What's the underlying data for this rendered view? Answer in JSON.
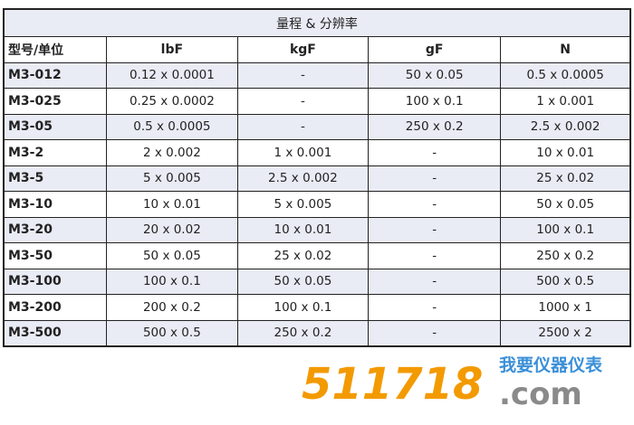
{
  "table": {
    "title": "量程 & 分辨率",
    "headers": [
      "型号/单位",
      "lbF",
      "kgF",
      "gF",
      "N"
    ],
    "rows": [
      [
        "M3-012",
        "0.12 x 0.0001",
        "-",
        "50 x 0.05",
        "0.5 x 0.0005"
      ],
      [
        "M3-025",
        "0.25 x 0.0002",
        "-",
        "100 x 0.1",
        "1 x 0.001"
      ],
      [
        "M3-05",
        "0.5 x 0.0005",
        "-",
        "250 x 0.2",
        "2.5 x 0.002"
      ],
      [
        "M3-2",
        "2 x 0.002",
        "1 x 0.001",
        "-",
        "10 x 0.01"
      ],
      [
        "M3-5",
        "5 x 0.005",
        "2.5 x 0.002",
        "-",
        "25 x 0.02"
      ],
      [
        "M3-10",
        "10 x 0.01",
        "5 x 0.005",
        "-",
        "50 x 0.05"
      ],
      [
        "M3-20",
        "20 x 0.02",
        "10 x 0.01",
        "-",
        "100 x 0.1"
      ],
      [
        "M3-50",
        "50 x 0.05",
        "25 x 0.02",
        "-",
        "250 x 0.2"
      ],
      [
        "M3-100",
        "100 x 0.1",
        "50 x 0.05",
        "-",
        "500 x 0.5"
      ],
      [
        "M3-200",
        "200 x 0.2",
        "100 x 0.1",
        "-",
        "1000 x 1"
      ],
      [
        "M3-500",
        "500 x 0.5",
        "250 x 0.2",
        "-",
        "2500 x 2"
      ]
    ]
  },
  "watermark": {
    "number": "511718",
    "chinese": "我要仪器仪表",
    "domain": ".com",
    "colors": {
      "number": "#f39a00",
      "chinese": "#3a8fd8",
      "domain": "#8a8a8a"
    }
  },
  "colors": {
    "row_shade": "#e9ebf5",
    "border": "#222222"
  }
}
